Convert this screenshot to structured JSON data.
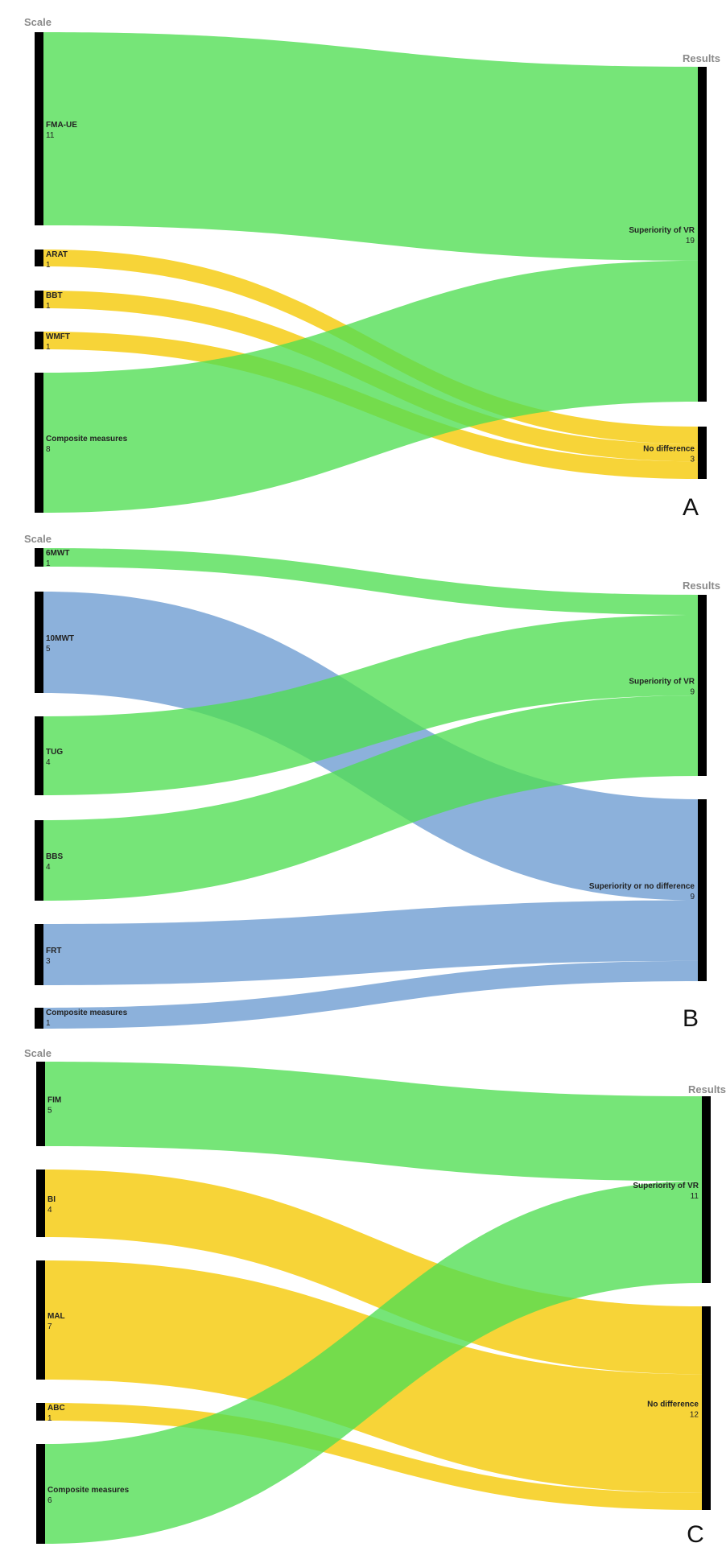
{
  "colors": {
    "green": "#4fde52",
    "yellow": "#f5c800",
    "blue": "#6b9bd1",
    "node": "#000000",
    "header": "#8a8a8a"
  },
  "panels": [
    {
      "letter": "A",
      "source_header": "Scale",
      "target_header": "Results",
      "sources": [
        {
          "label": "FMA-UE",
          "count": "11"
        },
        {
          "label": "ARAT",
          "count": "1"
        },
        {
          "label": "BBT",
          "count": "1"
        },
        {
          "label": "WMFT",
          "count": "1"
        },
        {
          "label": "Composite measures",
          "count": "8"
        }
      ],
      "targets": [
        {
          "label": "Superiority of VR",
          "count": "19"
        },
        {
          "label": "No difference",
          "count": "3"
        }
      ],
      "links": [
        {
          "source": 0,
          "target": 0,
          "value": 11,
          "color": "green"
        },
        {
          "source": 1,
          "target": 1,
          "value": 1,
          "color": "yellow"
        },
        {
          "source": 2,
          "target": 1,
          "value": 1,
          "color": "yellow"
        },
        {
          "source": 3,
          "target": 1,
          "value": 1,
          "color": "yellow"
        },
        {
          "source": 4,
          "target": 0,
          "value": 8,
          "color": "green"
        }
      ]
    },
    {
      "letter": "B",
      "source_header": "Scale",
      "target_header": "Results",
      "sources": [
        {
          "label": "6MWT",
          "count": "1"
        },
        {
          "label": "10MWT",
          "count": "5"
        },
        {
          "label": "TUG",
          "count": "4"
        },
        {
          "label": "BBS",
          "count": "4"
        },
        {
          "label": "FRT",
          "count": "3"
        },
        {
          "label": "Composite measures",
          "count": "1"
        }
      ],
      "targets": [
        {
          "label": "Superiority of VR",
          "count": "9"
        },
        {
          "label": "Superiority or no difference",
          "count": "9"
        }
      ],
      "links": [
        {
          "source": 0,
          "target": 0,
          "value": 1,
          "color": "green"
        },
        {
          "source": 1,
          "target": 1,
          "value": 5,
          "color": "blue"
        },
        {
          "source": 2,
          "target": 0,
          "value": 4,
          "color": "green"
        },
        {
          "source": 3,
          "target": 0,
          "value": 4,
          "color": "green"
        },
        {
          "source": 4,
          "target": 1,
          "value": 3,
          "color": "blue"
        },
        {
          "source": 5,
          "target": 1,
          "value": 1,
          "color": "blue"
        }
      ]
    },
    {
      "letter": "C",
      "source_header": "Scale",
      "target_header": "Results",
      "sources": [
        {
          "label": "FIM",
          "count": "5"
        },
        {
          "label": "BI",
          "count": "4"
        },
        {
          "label": "MAL",
          "count": "7"
        },
        {
          "label": "ABC",
          "count": "1"
        },
        {
          "label": "Composite measures",
          "count": "6"
        }
      ],
      "targets": [
        {
          "label": "Superiority of VR",
          "count": "11"
        },
        {
          "label": "No difference",
          "count": "12"
        }
      ],
      "links": [
        {
          "source": 0,
          "target": 0,
          "value": 5,
          "color": "green"
        },
        {
          "source": 1,
          "target": 1,
          "value": 4,
          "color": "yellow"
        },
        {
          "source": 2,
          "target": 1,
          "value": 7,
          "color": "yellow"
        },
        {
          "source": 3,
          "target": 1,
          "value": 1,
          "color": "yellow"
        },
        {
          "source": 4,
          "target": 0,
          "value": 6,
          "color": "green"
        }
      ]
    }
  ]
}
